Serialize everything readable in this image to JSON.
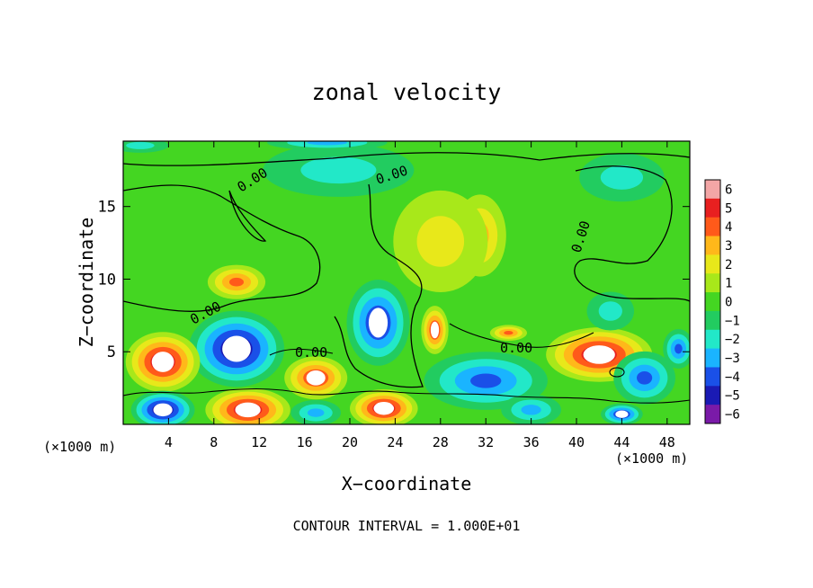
{
  "chart_data": {
    "type": "heatmap",
    "title": "zonal velocity",
    "xlabel": "X−coordinate",
    "ylabel": "Z−coordinate",
    "x_unit_label": "(×1000 m)",
    "footer": "CONTOUR INTERVAL = 1.000E+01",
    "xlim": [
      0,
      50
    ],
    "ylim": [
      0,
      19.5
    ],
    "x_ticks": [
      4,
      8,
      12,
      16,
      20,
      24,
      28,
      32,
      36,
      40,
      44,
      48
    ],
    "y_ticks": [
      5,
      10,
      15
    ],
    "colorbar": {
      "range": [
        -6,
        6
      ],
      "ticks": [
        6,
        5,
        4,
        3,
        2,
        1,
        0,
        "−1",
        "−2",
        "−3",
        "−4",
        "−5",
        "−6"
      ],
      "colors": [
        "#f3a6a6",
        "#e82020",
        "#ff5a1a",
        "#ffb81a",
        "#e8e81a",
        "#a8e81a",
        "#44d622",
        "#22cc60",
        "#22e8c8",
        "#1ab4ff",
        "#1a50e8",
        "#1a1ab4",
        "#7a1aa8"
      ]
    },
    "contour_labels": [
      "0.00",
      "0.00",
      "0.00",
      "0.00",
      "0.00",
      "0.00"
    ],
    "features": [
      {
        "x": 22.5,
        "z": 7.0,
        "value": -5,
        "rx": 3.0,
        "rz": 3.2
      },
      {
        "x": 10.0,
        "z": 5.2,
        "value": -6,
        "rx": 4.5,
        "rz": 2.8
      },
      {
        "x": 3.5,
        "z": 4.3,
        "value": 6,
        "rx": 3.5,
        "rz": 2.2
      },
      {
        "x": 42.0,
        "z": 4.8,
        "value": 6,
        "rx": 5.0,
        "rz": 2.0
      },
      {
        "x": 10.0,
        "z": 9.8,
        "value": 4,
        "rx": 2.8,
        "rz": 1.3
      },
      {
        "x": 27.5,
        "z": 6.5,
        "value": 5,
        "rx": 1.3,
        "rz": 1.8
      },
      {
        "x": 31.5,
        "z": 13.0,
        "value": 3,
        "rx": 2.6,
        "rz": 3.2
      },
      {
        "x": 28.0,
        "z": 12.6,
        "value": 2,
        "rx": 5.0,
        "rz": 4.2
      },
      {
        "x": 19.0,
        "z": 17.5,
        "value": -2,
        "rx": 8.0,
        "rz": 2.2
      },
      {
        "x": 44.0,
        "z": 17.0,
        "value": -2,
        "rx": 4.5,
        "rz": 2.0
      },
      {
        "x": 43.0,
        "z": 7.8,
        "value": -2,
        "rx": 2.5,
        "rz": 1.6
      },
      {
        "x": 17.0,
        "z": 3.2,
        "value": 5,
        "rx": 3.0,
        "rz": 1.6
      },
      {
        "x": 11.0,
        "z": 1.0,
        "value": 6,
        "rx": 4.0,
        "rz": 1.6
      },
      {
        "x": 23.0,
        "z": 1.1,
        "value": 6,
        "rx": 3.2,
        "rz": 1.4
      },
      {
        "x": 3.5,
        "z": 1.0,
        "value": -6,
        "rx": 3.0,
        "rz": 1.4
      },
      {
        "x": 32.0,
        "z": 3.0,
        "value": -4,
        "rx": 6.0,
        "rz": 2.2
      },
      {
        "x": 46.0,
        "z": 3.2,
        "value": -4,
        "rx": 3.0,
        "rz": 2.0
      },
      {
        "x": 49.0,
        "z": 5.2,
        "value": -4,
        "rx": 1.5,
        "rz": 1.5
      },
      {
        "x": 17.0,
        "z": 0.8,
        "value": -3,
        "rx": 2.5,
        "rz": 1.0
      },
      {
        "x": 36.0,
        "z": 1.0,
        "value": -3,
        "rx": 3.0,
        "rz": 1.2
      },
      {
        "x": 34.0,
        "z": 6.3,
        "value": 4,
        "rx": 1.8,
        "rz": 0.6
      },
      {
        "x": 44.0,
        "z": 0.7,
        "value": -5,
        "rx": 2.0,
        "rz": 0.8
      },
      {
        "x": 18.0,
        "z": 19.4,
        "value": -3,
        "rx": 6.0,
        "rz": 0.6
      },
      {
        "x": 1.5,
        "z": 19.2,
        "value": -2,
        "rx": 3.0,
        "rz": 0.6
      }
    ]
  }
}
